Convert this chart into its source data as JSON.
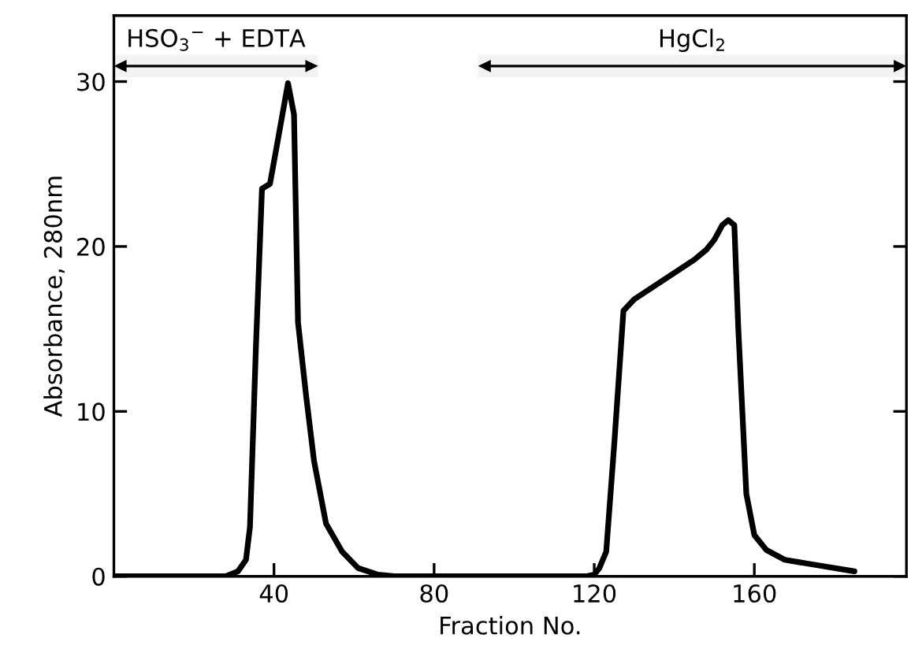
{
  "chart_data": {
    "type": "line",
    "xlabel": "Fraction No.",
    "ylabel": "Absorbance, 280nm",
    "x": [
      0,
      20,
      28,
      31,
      33,
      34,
      35.5,
      37,
      39,
      41,
      43.5,
      45,
      46,
      48,
      50,
      53,
      57,
      61,
      66,
      70,
      90,
      110,
      118,
      120,
      121.3,
      123,
      125,
      127.3,
      130,
      135,
      140,
      145,
      148,
      150,
      152,
      153.5,
      155,
      156,
      158,
      160,
      163,
      167.6,
      175,
      185
    ],
    "series": [
      {
        "color": "#000000",
        "values": [
          0,
          0,
          0,
          0.3,
          1.0,
          3,
          14,
          23.5,
          23.8,
          26.5,
          29.9,
          28,
          15.4,
          11,
          7,
          3.2,
          1.5,
          0.5,
          0.1,
          0,
          0,
          0,
          0,
          0.1,
          0.5,
          1.5,
          8,
          16.1,
          16.8,
          17.6,
          18.4,
          19.2,
          19.8,
          20.4,
          21.3,
          21.6,
          21.3,
          15,
          5,
          2.5,
          1.6,
          1.0,
          0.7,
          0.3
        ]
      }
    ],
    "xlim": [
      0,
      198
    ],
    "ylim": [
      0,
      34
    ],
    "xticks": [
      40,
      80,
      120,
      160
    ],
    "yticks": [
      0,
      10,
      20,
      30
    ],
    "grid": false,
    "legend": false,
    "marker": "none",
    "line_style": "solid",
    "bands": [
      {
        "axis": "x",
        "from": 0,
        "to": 51,
        "label": "HSO$_{3}$$^{−}$ + EDTA"
      },
      {
        "axis": "x",
        "from": 91,
        "to": 198,
        "label": "HgCl$_{2}$"
      }
    ]
  }
}
